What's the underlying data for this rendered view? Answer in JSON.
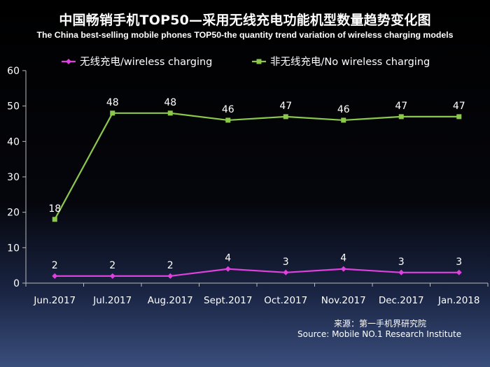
{
  "title": "中国畅销手机TOP50—采用无线充电功能机型数量趋势变化图",
  "subtitle": "The China best-selling mobile phones TOP50-the quantity trend variation of wireless charging models",
  "source": {
    "line1": "来源：第一手机界研究院",
    "line2": "Source: Mobile NO.1 Research Institute"
  },
  "colors": {
    "background": "#000000",
    "wireless": "#e040e0",
    "no_wireless": "#8cc84b",
    "axis": "#bbbbbb"
  },
  "chart_data": {
    "type": "line",
    "categories": [
      "Jun.2017",
      "Jul.2017",
      "Aug.2017",
      "Sept.2017",
      "Oct.2017",
      "Nov.2017",
      "Dec.2017",
      "Jan.2018"
    ],
    "series": [
      {
        "name": "无线充电/wireless charging",
        "values": [
          2,
          2,
          2,
          4,
          3,
          4,
          3,
          3
        ],
        "color": "#e040e0",
        "marker": "diamond"
      },
      {
        "name": "非无线充电/No wireless charging",
        "values": [
          18,
          48,
          48,
          46,
          47,
          46,
          47,
          47
        ],
        "color": "#8cc84b",
        "marker": "square"
      }
    ],
    "ylim": [
      0,
      60
    ],
    "yticks": [
      0,
      10,
      20,
      30,
      40,
      50,
      60
    ],
    "grid": false,
    "legend": "top",
    "data_labels": true
  }
}
